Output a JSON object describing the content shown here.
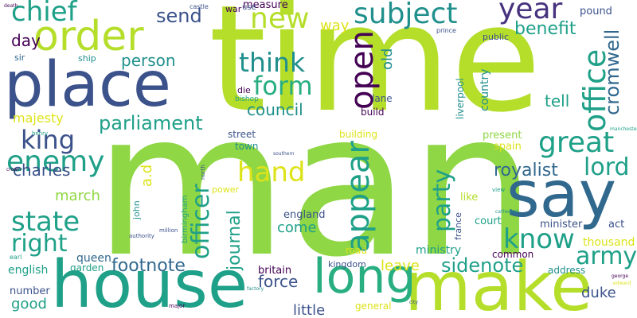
{
  "background": "#ffffff",
  "palette": {
    "lime": "#b5de2b",
    "green": "#8fd744",
    "teal": "#1fa088",
    "teal2": "#28ae80",
    "cyan": "#21908d",
    "blue": "#3b528b",
    "indigo": "#46327e",
    "purple": "#440154",
    "steel": "#31688e",
    "sea": "#26828e",
    "mint": "#35b779",
    "yellow": "#dde318"
  },
  "words": [
    {
      "t": "time",
      "c": "lime"
    },
    {
      "t": "man",
      "c": "green"
    },
    {
      "t": "place",
      "c": "blue"
    },
    {
      "t": "house",
      "c": "teal"
    },
    {
      "t": "order",
      "c": "lime"
    },
    {
      "t": "say",
      "c": "steel"
    },
    {
      "t": "make",
      "c": "lime"
    },
    {
      "t": "long",
      "c": "teal2"
    },
    {
      "t": "subject",
      "c": "cyan"
    },
    {
      "t": "year",
      "c": "indigo"
    },
    {
      "t": "chief",
      "c": "teal"
    },
    {
      "t": "new",
      "c": "lime"
    },
    {
      "t": "send",
      "c": "blue"
    },
    {
      "t": "think",
      "c": "cyan"
    },
    {
      "t": "form",
      "c": "teal2"
    },
    {
      "t": "open",
      "c": "purple"
    },
    {
      "t": "office",
      "c": "teal"
    },
    {
      "t": "benefit",
      "c": "teal"
    },
    {
      "t": "cromwell",
      "c": "steel"
    },
    {
      "t": "old",
      "c": "cyan"
    },
    {
      "t": "day",
      "c": "purple"
    },
    {
      "t": "person",
      "c": "cyan"
    },
    {
      "t": "king",
      "c": "blue"
    },
    {
      "t": "parliament",
      "c": "teal"
    },
    {
      "t": "council",
      "c": "cyan"
    },
    {
      "t": "majesty",
      "c": "yellow"
    },
    {
      "t": "great",
      "c": "teal"
    },
    {
      "t": "tell",
      "c": "teal"
    },
    {
      "t": "enemy",
      "c": "teal"
    },
    {
      "t": "charles",
      "c": "blue"
    },
    {
      "t": "hand",
      "c": "yellow"
    },
    {
      "t": "lord",
      "c": "teal"
    },
    {
      "t": "royalist",
      "c": "steel"
    },
    {
      "t": "appear",
      "c": "teal"
    },
    {
      "t": "party",
      "c": "teal"
    },
    {
      "t": "state",
      "c": "teal"
    },
    {
      "t": "right",
      "c": "teal"
    },
    {
      "t": "march",
      "c": "green"
    },
    {
      "t": "know",
      "c": "teal"
    },
    {
      "t": "officer",
      "c": "teal"
    },
    {
      "t": "journal",
      "c": "teal"
    },
    {
      "t": "army",
      "c": "teal"
    },
    {
      "t": "footnote",
      "c": "steel"
    },
    {
      "t": "force",
      "c": "blue"
    },
    {
      "t": "sidenote",
      "c": "teal"
    },
    {
      "t": "leave",
      "c": "yellow"
    },
    {
      "t": "come",
      "c": "teal"
    },
    {
      "t": "england",
      "c": "blue"
    },
    {
      "t": "english",
      "c": "teal"
    },
    {
      "t": "good",
      "c": "teal"
    },
    {
      "t": "little",
      "c": "blue"
    },
    {
      "t": "duke",
      "c": "blue"
    },
    {
      "t": "queen",
      "c": "steel"
    },
    {
      "t": "garden",
      "c": "teal"
    },
    {
      "t": "britain",
      "c": "purple"
    },
    {
      "t": "kingdom",
      "c": "blue"
    },
    {
      "t": "ministry",
      "c": "teal"
    },
    {
      "t": "common",
      "c": "purple"
    },
    {
      "t": "minister",
      "c": "blue"
    },
    {
      "t": "thousand",
      "c": "yellow"
    },
    {
      "t": "country",
      "c": "cyan"
    },
    {
      "t": "spain",
      "c": "yellow"
    },
    {
      "t": "present",
      "c": "green"
    },
    {
      "t": "building",
      "c": "yellow"
    },
    {
      "t": "liverpool",
      "c": "cyan"
    },
    {
      "t": "lane",
      "c": "blue"
    },
    {
      "t": "build",
      "c": "purple"
    },
    {
      "t": "way",
      "c": "yellow"
    },
    {
      "t": "measure",
      "c": "purple"
    },
    {
      "t": "street",
      "c": "blue"
    },
    {
      "t": "town",
      "c": "cyan"
    },
    {
      "t": "number",
      "c": "blue"
    },
    {
      "t": "general",
      "c": "yellow"
    },
    {
      "t": "road",
      "c": "yellow"
    },
    {
      "t": "address",
      "c": "cyan"
    },
    {
      "t": "pound",
      "c": "blue"
    },
    {
      "t": "public",
      "c": "blue"
    },
    {
      "t": "act",
      "c": "blue"
    },
    {
      "t": "like",
      "c": "lime"
    },
    {
      "t": "court",
      "c": "teal"
    },
    {
      "t": "france",
      "c": "blue"
    },
    {
      "t": "ship",
      "c": "cyan"
    },
    {
      "t": "sir",
      "c": "steel"
    },
    {
      "t": "die",
      "c": "purple"
    },
    {
      "t": "bishop",
      "c": "teal"
    },
    {
      "t": "war",
      "c": "purple"
    },
    {
      "t": "use",
      "c": "blue"
    },
    {
      "t": "power",
      "c": "yellow"
    },
    {
      "t": "john",
      "c": "cyan"
    },
    {
      "t": "birmingham",
      "c": "teal"
    },
    {
      "t": "a.d",
      "c": "yellow"
    },
    {
      "t": "prince",
      "c": "blue"
    },
    {
      "t": "castle",
      "c": "blue"
    },
    {
      "t": "henry",
      "c": "teal"
    },
    {
      "t": "earl",
      "c": "teal"
    },
    {
      "t": "million",
      "c": "blue"
    },
    {
      "t": "authority",
      "c": "blue"
    },
    {
      "t": "major",
      "c": "purple"
    },
    {
      "t": "cathedral",
      "c": "cyan"
    },
    {
      "t": "edward",
      "c": "yellow"
    },
    {
      "t": "manchester",
      "c": "teal"
    },
    {
      "t": "southern",
      "c": "blue"
    },
    {
      "t": "factory",
      "c": "cyan"
    },
    {
      "t": "death",
      "c": "purple"
    },
    {
      "t": "north",
      "c": "blue"
    },
    {
      "t": "george",
      "c": "purple"
    },
    {
      "t": "view",
      "c": "teal"
    },
    {
      "t": "city",
      "c": "blue"
    },
    {
      "t": "crown",
      "c": "purple"
    }
  ]
}
